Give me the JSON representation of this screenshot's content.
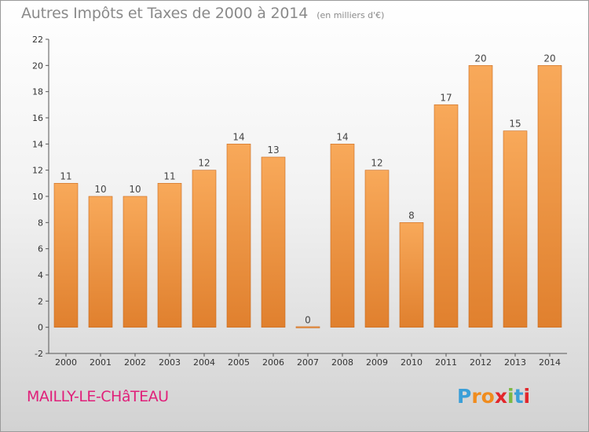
{
  "title": "Autres Impôts et Taxes de 2000 à 2014",
  "subtitle": "(en milliers d'€)",
  "place": "MAILLY-LE-CHâTEAU",
  "logo": {
    "letters": [
      "P",
      "r",
      "o",
      "x",
      "i",
      "t",
      "i"
    ],
    "colors": [
      "#3a9fd8",
      "#f08c1e",
      "#f08c1e",
      "#e2262b",
      "#7cb943",
      "#3a9fd8",
      "#e2262b"
    ]
  },
  "colors": {
    "bar_top": "#f8a95a",
    "bar_bottom": "#e0802e",
    "bar_stroke": "#c96a1e"
  },
  "chart_data": {
    "type": "bar",
    "title": "Autres Impôts et Taxes de 2000 à 2014",
    "subtitle": "(en milliers d'€)",
    "categories": [
      "2000",
      "2001",
      "2002",
      "2003",
      "2004",
      "2005",
      "2006",
      "2007",
      "2008",
      "2009",
      "2010",
      "2011",
      "2012",
      "2013",
      "2014"
    ],
    "values": [
      11,
      10,
      10,
      11,
      12,
      14,
      13,
      0,
      14,
      12,
      8,
      17,
      20,
      15,
      20
    ],
    "ylim": [
      -2,
      22
    ],
    "yticks": [
      -2,
      0,
      2,
      4,
      6,
      8,
      10,
      12,
      14,
      16,
      18,
      20,
      22
    ],
    "grid": false,
    "legend": "none"
  }
}
